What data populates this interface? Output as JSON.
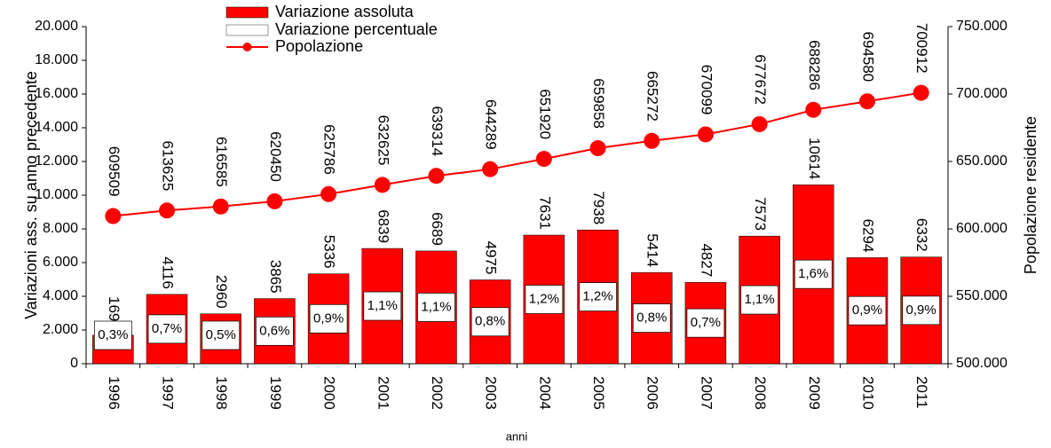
{
  "chart_data": {
    "type": "bar_line",
    "x_label": "anni",
    "y_label": "Variazioni ass. su anno precedente",
    "y2_label": "Popolazione residente",
    "categories": [
      "1996",
      "1997",
      "1998",
      "1999",
      "2000",
      "2001",
      "2002",
      "2003",
      "2004",
      "2005",
      "2006",
      "2007",
      "2008",
      "2009",
      "2010",
      "2011"
    ],
    "series": [
      {
        "name": "Variazione assoluta",
        "color": "#ff0000",
        "values": [
          1694,
          4116,
          2960,
          3865,
          5336,
          6839,
          6689,
          4975,
          7631,
          7938,
          5414,
          4827,
          7573,
          10614,
          6294,
          6332
        ]
      },
      {
        "name": "Variazione percentuale",
        "color": "#ffffff",
        "values": [
          0.3,
          0.7,
          0.5,
          0.6,
          0.9,
          1.1,
          1.1,
          0.8,
          1.2,
          1.2,
          0.8,
          0.7,
          1.1,
          1.6,
          0.9,
          0.9
        ],
        "value_labels": [
          "0,3%",
          "0,7%",
          "0,5%",
          "0,6%",
          "0,9%",
          "1,1%",
          "1,1%",
          "0,8%",
          "1,2%",
          "1,2%",
          "0,8%",
          "0,7%",
          "1,1%",
          "1,6%",
          "0,9%",
          "0,9%"
        ]
      },
      {
        "name": "Popolazione",
        "color": "#ff0000",
        "axis": "y2",
        "values": [
          609509,
          613625,
          616585,
          620450,
          625786,
          632625,
          639314,
          644289,
          651920,
          659858,
          665272,
          670099,
          677672,
          688286,
          694580,
          700912
        ]
      }
    ],
    "ylim": [
      0,
      20000
    ],
    "yticks": [
      0,
      {
        "value": 2000,
        "label": "2.000"
      },
      {
        "value": 4000,
        "label": "4.000"
      },
      {
        "value": 6000,
        "label": "6.000"
      },
      {
        "value": 8000,
        "label": "8.000"
      },
      {
        "value": 10000,
        "label": "10.000"
      },
      {
        "value": 12000,
        "label": "12.000"
      },
      {
        "value": 14000,
        "label": "14.000"
      },
      {
        "value": 16000,
        "label": "16.000"
      },
      {
        "value": 18000,
        "label": "18.000"
      },
      {
        "value": 20000,
        "label": "20.000"
      }
    ],
    "y2lim": [
      500000,
      750000
    ],
    "y2ticks": [
      {
        "value": 500000,
        "label": "500.000"
      },
      {
        "value": 550000,
        "label": "550.000"
      },
      {
        "value": 600000,
        "label": "600.000"
      },
      {
        "value": 650000,
        "label": "650.000"
      },
      {
        "value": 700000,
        "label": "700.000"
      },
      {
        "value": 750000,
        "label": "750.000"
      }
    ],
    "legend": "top",
    "grid": false
  }
}
